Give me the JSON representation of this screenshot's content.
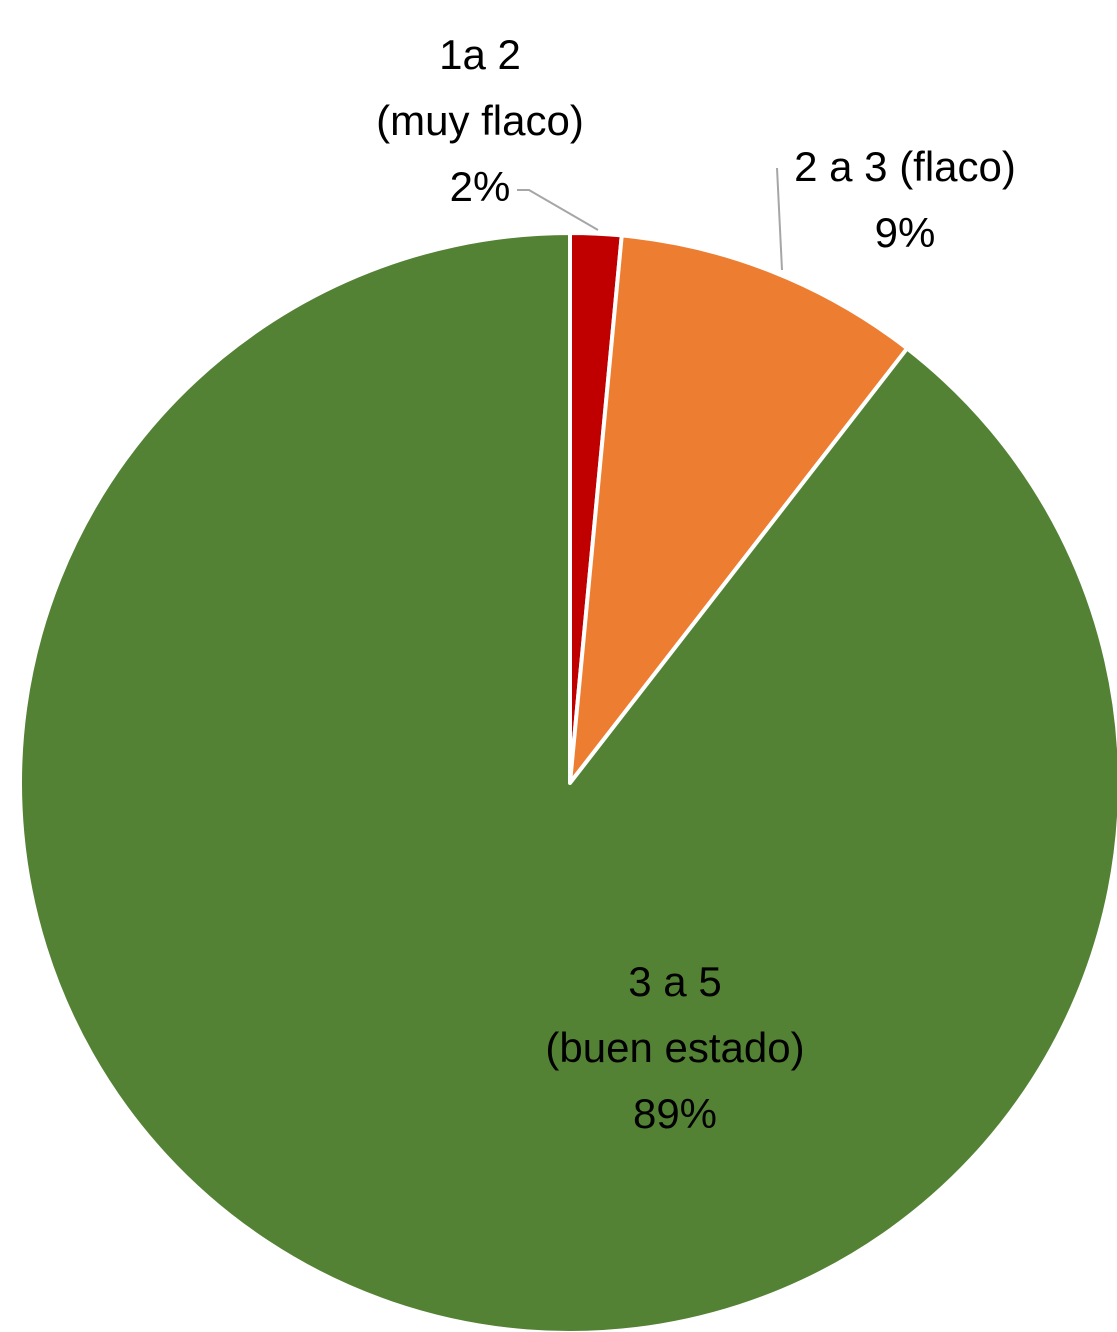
{
  "chart_data": {
    "type": "pie",
    "title": "",
    "start_angle_deg": 0,
    "direction": "clockwise",
    "slices": [
      {
        "label_lines": [
          "1a 2",
          "(muy flaco)"
        ],
        "value": 1.5,
        "percent_label": "2%",
        "color": "#C00000"
      },
      {
        "label_lines": [
          "2 a 3 (flaco)"
        ],
        "value": 9,
        "percent_label": "9%",
        "color": "#ED7D31"
      },
      {
        "label_lines": [
          "3 a 5",
          "(buen estado)"
        ],
        "value": 89.5,
        "percent_label": "89%",
        "color": "#548235"
      }
    ],
    "slice_border_color": "#FFFFFF",
    "leader_line_color": "#A6A6A6",
    "legend": "none"
  }
}
